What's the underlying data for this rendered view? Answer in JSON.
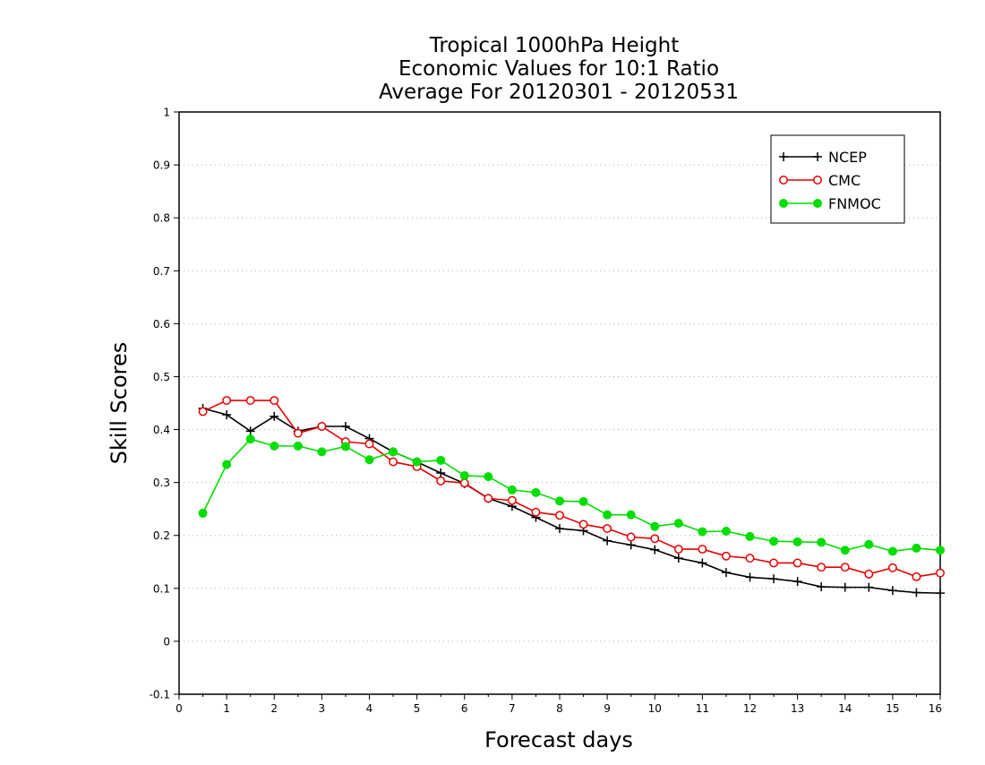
{
  "chart_data": {
    "type": "line",
    "title_lines": [
      "Tropical 1000hPa Height",
      "Economic Values for 10:1 Ratio",
      "Average For 20120301 - 20120531"
    ],
    "xlabel": "Forecast days",
    "ylabel": "Skill Scores",
    "xlim": [
      0,
      16
    ],
    "ylim": [
      -0.1,
      1
    ],
    "x_ticks": [
      0,
      1,
      2,
      3,
      4,
      5,
      6,
      7,
      8,
      9,
      10,
      11,
      12,
      13,
      14,
      15,
      16
    ],
    "x_tick_labels": [
      "0",
      "1",
      "2",
      "3",
      "4",
      "5",
      "6",
      "7",
      "8",
      "9",
      "10",
      "11",
      "12",
      "13",
      "14",
      "15",
      "16"
    ],
    "y_ticks": [
      -0.1,
      0,
      0.1,
      0.2,
      0.3,
      0.4,
      0.5,
      0.6,
      0.7,
      0.8,
      0.9,
      1
    ],
    "y_tick_labels": [
      "-0.1",
      "0",
      "0.1",
      "0.2",
      "0.3",
      "0.4",
      "0.5",
      "0.6",
      "0.7",
      "0.8",
      "0.9",
      "1"
    ],
    "grid": "horizontal dotted",
    "legend_position": "top-right",
    "x": [
      0.5,
      1,
      1.5,
      2,
      2.5,
      3,
      3.5,
      4,
      4.5,
      5,
      5.5,
      6,
      6.5,
      7,
      7.5,
      8,
      8.5,
      9,
      9.5,
      10,
      10.5,
      11,
      11.5,
      12,
      12.5,
      13,
      13.5,
      14,
      14.5,
      15,
      15.5,
      16
    ],
    "series": [
      {
        "name": "NCEP",
        "color": "#000000",
        "marker": "plus",
        "values": [
          0.44,
          0.428,
          0.397,
          0.425,
          0.397,
          0.406,
          0.406,
          0.383,
          0.358,
          0.339,
          0.318,
          0.298,
          0.27,
          0.255,
          0.234,
          0.213,
          0.209,
          0.19,
          0.182,
          0.173,
          0.157,
          0.148,
          0.13,
          0.121,
          0.118,
          0.113,
          0.103,
          0.102,
          0.102,
          0.096,
          0.092,
          0.091
        ]
      },
      {
        "name": "CMC",
        "color": "#e60000",
        "marker": "open-circle",
        "values": [
          0.434,
          0.455,
          0.455,
          0.455,
          0.393,
          0.406,
          0.377,
          0.373,
          0.339,
          0.33,
          0.303,
          0.299,
          0.27,
          0.266,
          0.244,
          0.238,
          0.221,
          0.213,
          0.197,
          0.194,
          0.174,
          0.174,
          0.161,
          0.157,
          0.148,
          0.148,
          0.14,
          0.14,
          0.127,
          0.139,
          0.122,
          0.129
        ]
      },
      {
        "name": "FNMOC",
        "color": "#00dd00",
        "marker": "filled-circle",
        "values": [
          0.242,
          0.334,
          0.382,
          0.369,
          0.369,
          0.358,
          0.368,
          0.343,
          0.358,
          0.339,
          0.342,
          0.313,
          0.311,
          0.286,
          0.281,
          0.265,
          0.264,
          0.239,
          0.239,
          0.217,
          0.223,
          0.207,
          0.208,
          0.198,
          0.189,
          0.188,
          0.187,
          0.172,
          0.183,
          0.17,
          0.176,
          0.172
        ]
      }
    ]
  }
}
